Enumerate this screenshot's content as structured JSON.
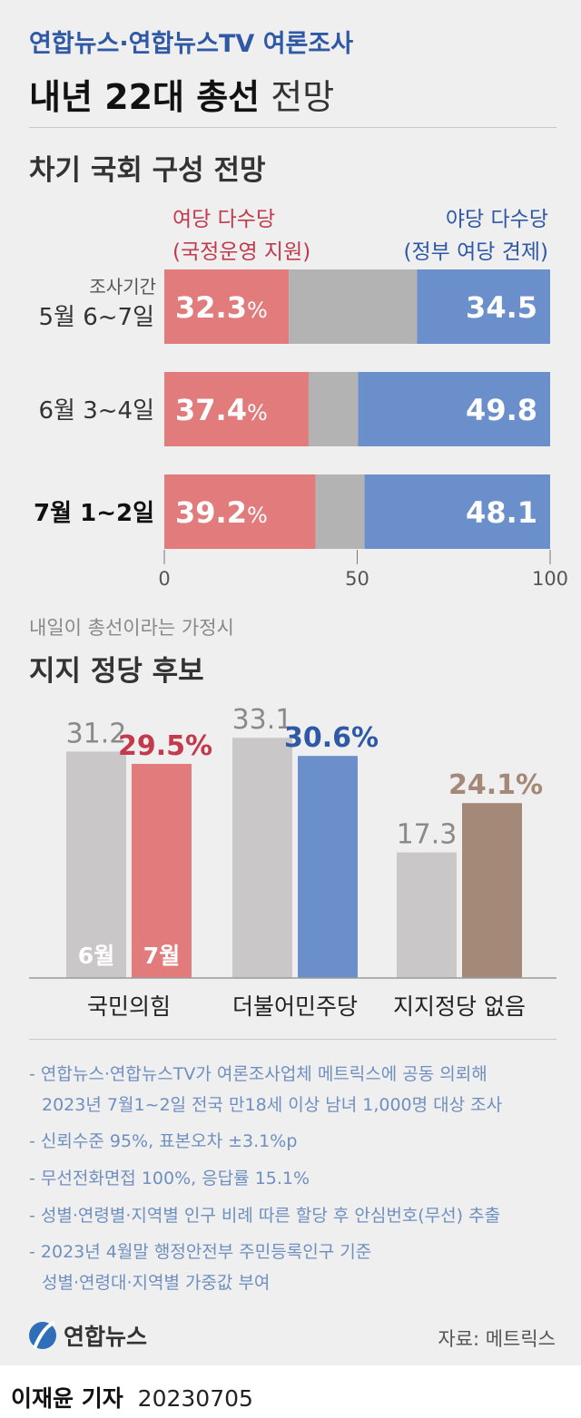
{
  "header": {
    "source_line": "연합뉴스·연합뉴스TV 여론조사",
    "title_bold": "내년 22대 총선",
    "title_light": "전망"
  },
  "section1": {
    "title": "차기 국회 구성 전망",
    "left_label_line1": "여당 다수당",
    "left_label_line2": "(국정운영 지원)",
    "right_label_line1": "야당 다수당",
    "right_label_line2": "(정부 여당 견제)",
    "period_caption": "조사기간"
  },
  "section2": {
    "subtitle": "내일이 총선이라는 가정시",
    "title": "지지 정당 후보"
  },
  "colors": {
    "ruling": "#e27b7b",
    "opposition": "#6a8fcb",
    "undecided": "#b3b3b3",
    "june_bar": "#c9c7c7",
    "ppp_july": "#e27b7b",
    "dem_july": "#6a8fcb",
    "none_july": "#a48878",
    "ppp_text": "#c23a4c",
    "dem_text": "#2f58a5",
    "none_text": "#a48878",
    "june_text": "#8a8a8a"
  },
  "chart_data": [
    {
      "type": "bar",
      "orientation": "horizontal",
      "stacked": true,
      "title": "차기 국회 구성 전망",
      "categories": [
        "5월 6~7일",
        "6월 3~4일",
        "7월 1~2일"
      ],
      "series": [
        {
          "name": "여당 다수당 (국정운영 지원)",
          "values": [
            32.3,
            37.4,
            39.2
          ],
          "labels": [
            "32.3",
            "37.4",
            "39.2"
          ]
        },
        {
          "name": "",
          "values": [
            33.2,
            12.8,
            12.7
          ]
        },
        {
          "name": "야당 다수당 (정부 여당 견제)",
          "values": [
            34.5,
            49.8,
            48.1
          ],
          "labels": [
            "34.5",
            "49.8",
            "48.1"
          ]
        }
      ],
      "unit_suffix": "%",
      "xlim": [
        0,
        100
      ],
      "ticks": [
        "0",
        "50",
        "100"
      ],
      "bold_category_index": 2
    },
    {
      "type": "bar",
      "title": "지지 정당 후보",
      "subtitle": "내일이 총선이라는 가정시",
      "categories": [
        "국민의힘",
        "더불어민주당",
        "지지정당 없음"
      ],
      "series": [
        {
          "name": "6월",
          "values": [
            31.2,
            33.1,
            17.3
          ],
          "labels": [
            "31.2",
            "33.1",
            "17.3"
          ]
        },
        {
          "name": "7월",
          "values": [
            29.5,
            30.6,
            24.1
          ],
          "labels": [
            "29.5%",
            "30.6%",
            "24.1%"
          ]
        }
      ],
      "ylim": [
        0,
        36
      ]
    }
  ],
  "notes": [
    "- 연합뉴스·연합뉴스TV가 여론조사업체 메트릭스에 공동 의뢰해",
    "2023년 7월1~2일 전국 만18세 이상 남녀 1,000명 대상 조사",
    "- 신뢰수준 95%, 표본오차 ±3.1%p",
    "- 무선전화면접 100%, 응답률 15.1%",
    "- 성별·연령별·지역별 인구 비례 따른 할당 후 안심번호(무선) 추출",
    "- 2023년 4월말 행정안전부 주민등록인구 기준",
    "성별·연령대·지역별 가중값 부여"
  ],
  "footer": {
    "logo_text": "연합뉴스",
    "source": "자료: 메트릭스",
    "byline": "이재윤 기자",
    "date": "20230705"
  }
}
